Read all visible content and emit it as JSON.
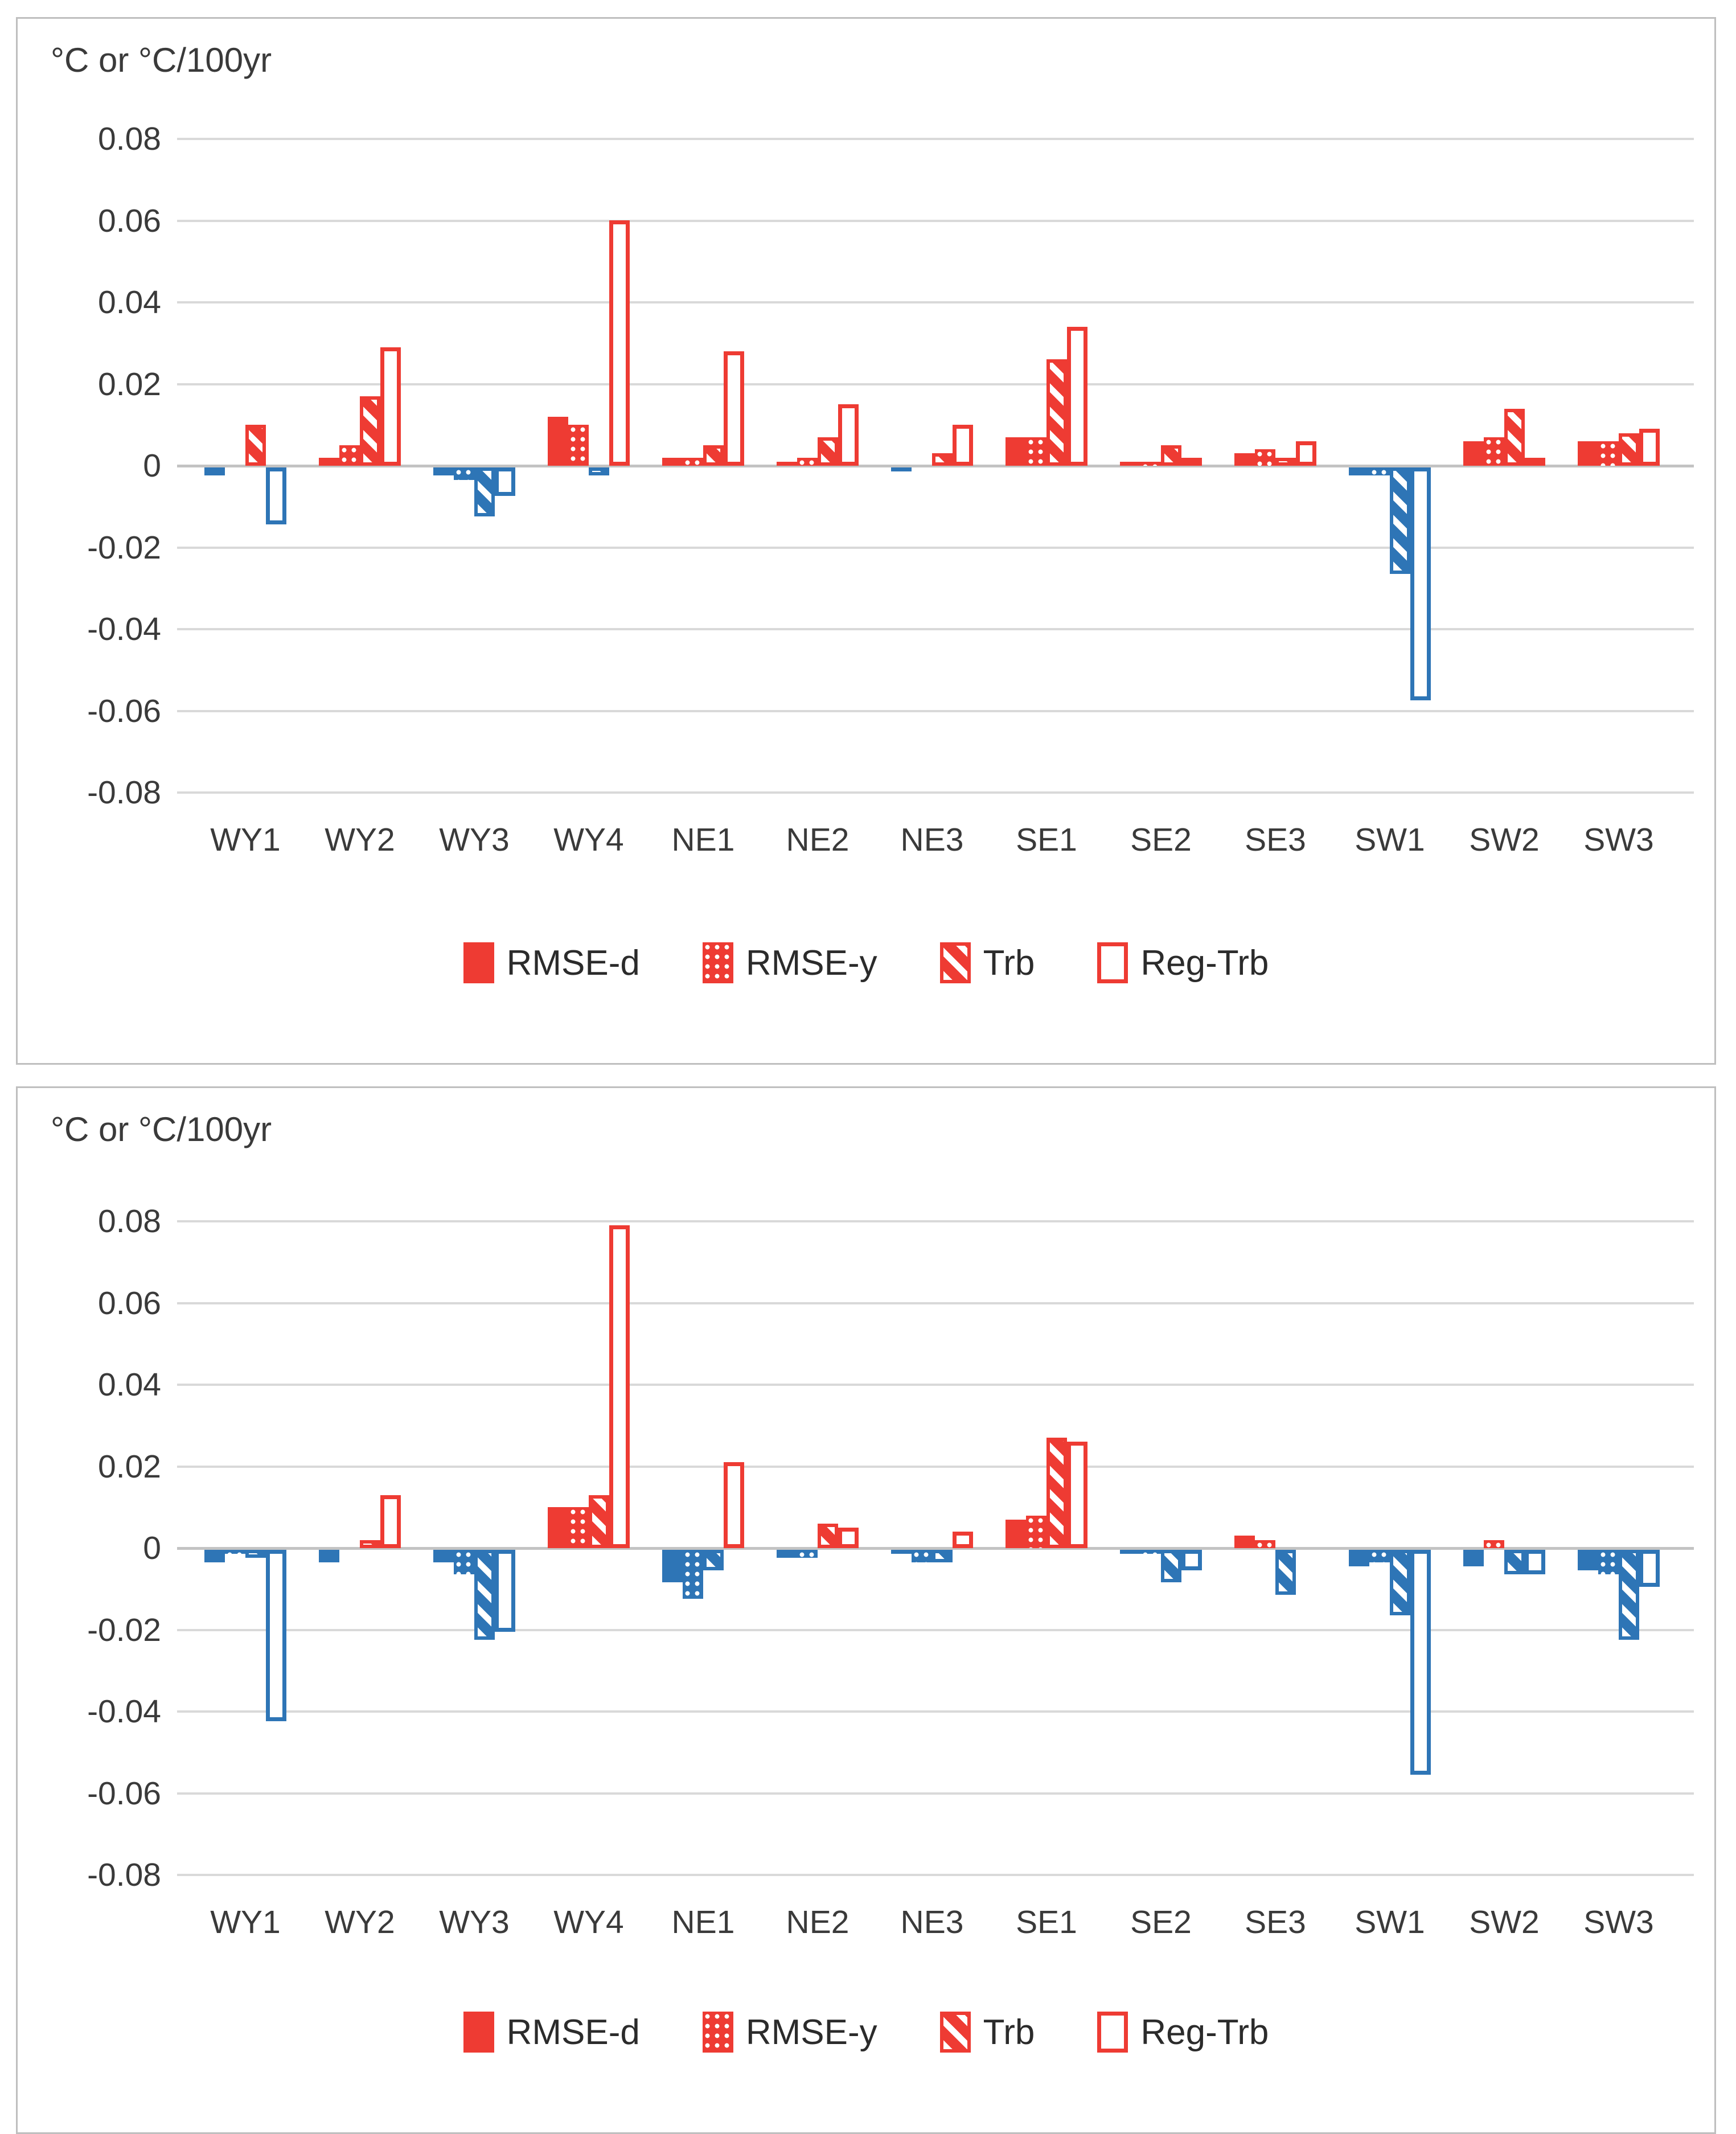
{
  "chart_data": [
    {
      "type": "bar",
      "title": "°C or °C/100yr",
      "categories": [
        "WY1",
        "WY2",
        "WY3",
        "WY4",
        "NE1",
        "NE2",
        "NE3",
        "SE1",
        "SE2",
        "SE3",
        "SW1",
        "SW2",
        "SW3"
      ],
      "series": [
        {
          "name": "RMSE-d",
          "style": "solid",
          "values": [
            -0.002,
            0.002,
            -0.002,
            0.012,
            0.002,
            0.001,
            -0.001,
            0.007,
            0.001,
            0.003,
            -0.002,
            0.006,
            0.006
          ]
        },
        {
          "name": "RMSE-y",
          "style": "dotted",
          "values": [
            0,
            0.005,
            -0.003,
            0.01,
            0.002,
            0.002,
            0,
            0.007,
            0.001,
            0.004,
            -0.002,
            0.007,
            0.006
          ]
        },
        {
          "name": "Trb",
          "style": "hatch",
          "values": [
            0.01,
            0.017,
            -0.012,
            -0.002,
            0.005,
            0.007,
            0.003,
            0.026,
            0.005,
            0.002,
            -0.026,
            0.014,
            0.008
          ]
        },
        {
          "name": "Reg-Trb",
          "style": "outline",
          "values": [
            -0.014,
            0.029,
            -0.007,
            0.06,
            0.028,
            0.015,
            0.01,
            0.034,
            0.002,
            0.006,
            -0.057,
            0.002,
            0.009
          ]
        }
      ],
      "ylim": [
        -0.08,
        0.08
      ],
      "ytick_step": 0.02,
      "yticks": [
        "0.08",
        "0.06",
        "0.04",
        "0.02",
        "0",
        "-0.02",
        "-0.04",
        "-0.06",
        "-0.08"
      ],
      "positive_color": "#ee3b33",
      "negative_color": "#2e75b6",
      "grid": true,
      "legend_position": "bottom"
    },
    {
      "type": "bar",
      "title": "°C or °C/100yr",
      "categories": [
        "WY1",
        "WY2",
        "WY3",
        "WY4",
        "NE1",
        "NE2",
        "NE3",
        "SE1",
        "SE2",
        "SE3",
        "SW1",
        "SW2",
        "SW3"
      ],
      "series": [
        {
          "name": "RMSE-d",
          "style": "solid",
          "values": [
            -0.003,
            -0.003,
            -0.003,
            0.01,
            -0.008,
            -0.002,
            -0.001,
            0.007,
            -0.001,
            0.003,
            -0.004,
            -0.004,
            -0.005
          ]
        },
        {
          "name": "RMSE-y",
          "style": "dotted",
          "values": [
            -0.001,
            0,
            -0.006,
            0.01,
            -0.012,
            -0.002,
            -0.003,
            0.008,
            -0.001,
            0.002,
            -0.003,
            0.002,
            -0.006
          ]
        },
        {
          "name": "Trb",
          "style": "hatch",
          "values": [
            -0.002,
            0.002,
            -0.022,
            0.013,
            -0.005,
            0.006,
            -0.003,
            0.027,
            -0.008,
            -0.011,
            -0.016,
            -0.006,
            -0.022
          ]
        },
        {
          "name": "Reg-Trb",
          "style": "outline",
          "values": [
            -0.042,
            0.013,
            -0.02,
            0.079,
            0.021,
            0.005,
            0.004,
            0.026,
            -0.005,
            0,
            -0.055,
            -0.006,
            -0.009
          ]
        }
      ],
      "ylim": [
        -0.08,
        0.08
      ],
      "ytick_step": 0.02,
      "yticks": [
        "0.08",
        "0.06",
        "0.04",
        "0.02",
        "0",
        "-0.02",
        "-0.04",
        "-0.06",
        "-0.08"
      ],
      "positive_color": "#ee3b33",
      "negative_color": "#2e75b6",
      "grid": true,
      "legend_position": "bottom"
    }
  ]
}
